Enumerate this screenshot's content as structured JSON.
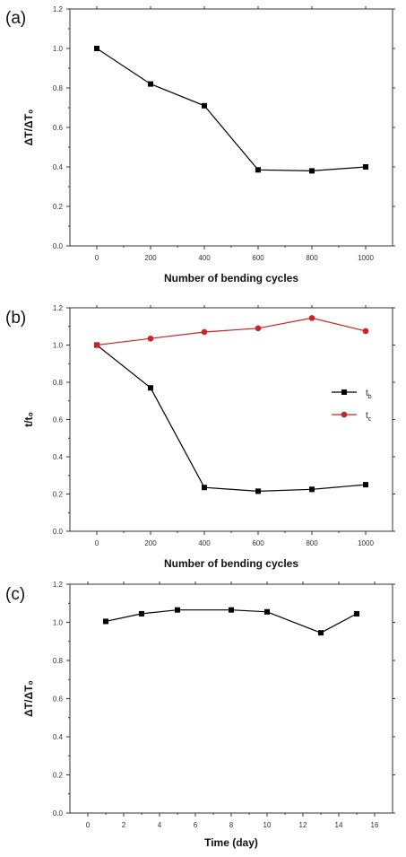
{
  "chart_data": [
    {
      "type": "line",
      "panel_label": "(a)",
      "xlabel": "Number of bending cycles",
      "ylabel": "ΔT/ΔT₀",
      "xlim": [
        -100,
        1100
      ],
      "ylim": [
        0.0,
        1.2
      ],
      "x_ticks": [
        0,
        200,
        400,
        600,
        800,
        1000
      ],
      "x_tick_labels": [
        "0",
        "200",
        "400",
        "600",
        "800",
        "1000"
      ],
      "y_ticks": [
        0.0,
        0.2,
        0.4,
        0.6,
        0.8,
        1.0,
        1.2
      ],
      "y_tick_labels": [
        "0.0",
        "0.2",
        "0.4",
        "0.6",
        "0.8",
        "1.0",
        "1.2"
      ],
      "grid": false,
      "series": [
        {
          "x": [
            0,
            200,
            400,
            600,
            800,
            1000
          ],
          "values": [
            1.0,
            0.82,
            0.71,
            0.385,
            0.38,
            0.4
          ],
          "color": "#000000",
          "marker": "square"
        }
      ]
    },
    {
      "type": "line",
      "panel_label": "(b)",
      "xlabel": "Number of bending cycles",
      "ylabel": "t/t₀",
      "xlim": [
        -100,
        1100
      ],
      "ylim": [
        0.0,
        1.2
      ],
      "x_ticks": [
        0,
        200,
        400,
        600,
        800,
        1000
      ],
      "x_tick_labels": [
        "0",
        "200",
        "400",
        "600",
        "800",
        "1000"
      ],
      "y_ticks": [
        0.0,
        0.2,
        0.4,
        0.6,
        0.8,
        1.0,
        1.2
      ],
      "y_tick_labels": [
        "0.0",
        "0.2",
        "0.4",
        "0.6",
        "0.8",
        "1.0",
        "1.2"
      ],
      "grid": false,
      "legend_position": "right",
      "series": [
        {
          "name": "t",
          "name_sub": "b",
          "x": [
            0,
            200,
            400,
            600,
            800,
            1000
          ],
          "values": [
            1.0,
            0.77,
            0.235,
            0.215,
            0.225,
            0.25
          ],
          "color": "#000000",
          "marker": "square"
        },
        {
          "name": "t",
          "name_sub": "c",
          "x": [
            0,
            200,
            400,
            600,
            800,
            1000
          ],
          "values": [
            1.0,
            1.035,
            1.07,
            1.09,
            1.145,
            1.075
          ],
          "color": "#cc2222",
          "marker": "circle"
        }
      ]
    },
    {
      "type": "line",
      "panel_label": "(c)",
      "xlabel": "Time (day)",
      "ylabel": "ΔT/ΔT₀",
      "xlim": [
        -1,
        17
      ],
      "ylim": [
        0.0,
        1.2
      ],
      "x_ticks": [
        0,
        2,
        4,
        6,
        8,
        10,
        12,
        14,
        16
      ],
      "x_tick_labels": [
        "0",
        "2",
        "4",
        "6",
        "8",
        "10",
        "12",
        "14",
        "16"
      ],
      "y_ticks": [
        0.0,
        0.2,
        0.4,
        0.6,
        0.8,
        1.0,
        1.2
      ],
      "y_tick_labels": [
        "0.0",
        "0.2",
        "0.4",
        "0.6",
        "0.8",
        "1.0",
        "1.2"
      ],
      "grid": false,
      "series": [
        {
          "x": [
            1,
            3,
            5,
            8,
            10,
            13,
            15
          ],
          "values": [
            1.005,
            1.045,
            1.065,
            1.065,
            1.055,
            0.945,
            1.045
          ],
          "color": "#000000",
          "marker": "square"
        }
      ]
    }
  ]
}
